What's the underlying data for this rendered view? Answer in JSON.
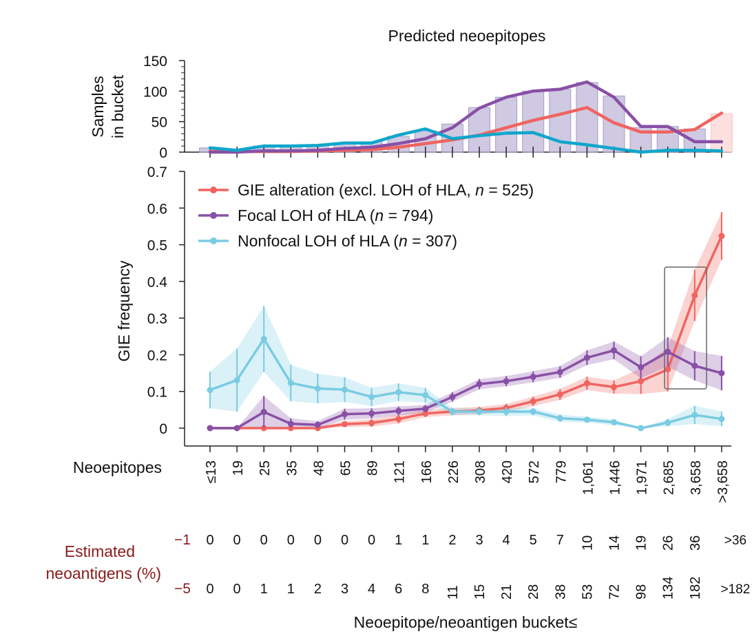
{
  "chart_data": [
    {
      "type": "bar+line",
      "title": "Predicted neoepitopes",
      "ylabel_lines": [
        "Samples",
        "in bucket"
      ],
      "ylim": [
        0,
        150
      ],
      "yticks": [
        "0",
        "50",
        "100",
        "150"
      ],
      "categories": [
        "≤13",
        "19",
        "25",
        "35",
        "48",
        "65",
        "89",
        "121",
        "166",
        "226",
        "308",
        "420",
        "572",
        "779",
        "1,061",
        "1,446",
        "1,971",
        "2,685",
        "3,658",
        ">3,658"
      ],
      "bars_total": [
        7,
        5,
        10,
        10,
        12,
        15,
        17,
        26,
        35,
        46,
        73,
        90,
        100,
        103,
        114,
        92,
        40,
        42,
        38,
        63
      ],
      "series": [
        {
          "color": "#F0645F",
          "values": [
            1,
            1,
            1,
            1,
            2,
            3,
            4,
            8,
            14,
            20,
            28,
            40,
            52,
            62,
            73,
            48,
            33,
            33,
            37,
            64
          ]
        },
        {
          "color": "#8850A6",
          "values": [
            0,
            0,
            2,
            2,
            3,
            6,
            8,
            14,
            22,
            40,
            72,
            90,
            100,
            103,
            115,
            90,
            42,
            42,
            17,
            17
          ]
        },
        {
          "color": "#0FA6CB",
          "values": [
            7,
            3,
            10,
            10,
            11,
            15,
            15,
            28,
            38,
            22,
            27,
            31,
            32,
            17,
            12,
            6,
            0,
            3,
            3,
            2
          ]
        }
      ]
    },
    {
      "type": "line",
      "ylabel": "GIE frequency",
      "ylim": [
        0,
        0.7
      ],
      "yticks": [
        "0",
        "0.1",
        "0.2",
        "0.3",
        "0.4",
        "0.5",
        "0.6",
        "0.7"
      ],
      "legend_position": "top-left",
      "series": [
        {
          "prefix": "GIE alteration (excl. LOH of HLA, ",
          "n_label": "n",
          "suffix": " = 525)",
          "color": "#F0645F",
          "values": [
            0,
            0,
            0,
            0,
            0,
            0.011,
            0.014,
            0.025,
            0.04,
            0.045,
            0.048,
            0.055,
            0.073,
            0.092,
            0.122,
            0.112,
            0.128,
            0.16,
            0.362,
            0.524
          ],
          "ci": [
            0,
            0,
            0,
            0,
            0.004,
            0.008,
            0.01,
            0.012,
            0.01,
            0.01,
            0.01,
            0.011,
            0.013,
            0.015,
            0.018,
            0.018,
            0.035,
            0.06,
            0.07,
            0.065
          ]
        },
        {
          "prefix": "Focal LOH of HLA (",
          "n_label": "n",
          "suffix": " = 794)",
          "color": "#8850A6",
          "values": [
            0,
            0,
            0.044,
            0.012,
            0.009,
            0.038,
            0.04,
            0.047,
            0.053,
            0.085,
            0.12,
            0.128,
            0.14,
            0.153,
            0.192,
            0.212,
            0.166,
            0.208,
            0.17,
            0.15
          ],
          "ci": [
            0,
            0,
            0.044,
            0.015,
            0.01,
            0.015,
            0.014,
            0.012,
            0.01,
            0.013,
            0.014,
            0.014,
            0.015,
            0.016,
            0.02,
            0.024,
            0.03,
            0.04,
            0.04,
            0.047
          ]
        },
        {
          "prefix": "Nonfocal LOH of HLA (",
          "n_label": "n",
          "suffix": " = 307)",
          "color": "#7ACBE3",
          "values": [
            0.104,
            0.131,
            0.243,
            0.123,
            0.108,
            0.105,
            0.085,
            0.098,
            0.09,
            0.045,
            0.045,
            0.045,
            0.045,
            0.027,
            0.023,
            0.016,
            0,
            0.015,
            0.036,
            0.025
          ],
          "ci": [
            0.05,
            0.086,
            0.09,
            0.05,
            0.04,
            0.034,
            0.025,
            0.024,
            0.02,
            0.01,
            0.01,
            0.012,
            0.01,
            0.01,
            0.008,
            0.008,
            0,
            0.01,
            0.025,
            0.02
          ]
        }
      ]
    }
  ],
  "bucket_table": {
    "neoepitopes_label": "Neoepitopes",
    "estimated_label_lines": [
      "Estimated",
      "neoantigens (%)"
    ],
    "row1": {
      "rate": "−1",
      "values": [
        "0",
        "0",
        "0",
        "0",
        "0",
        "0",
        "0",
        "1",
        "1",
        "2",
        "3",
        "4",
        "5",
        "7",
        "10",
        "14",
        "19",
        "26",
        "36",
        ">36"
      ]
    },
    "row2": {
      "rate": "−5",
      "values": [
        "0",
        "0",
        "1",
        "1",
        "2",
        "3",
        "4",
        "6",
        "8",
        "11",
        "15",
        "21",
        "28",
        "38",
        "53",
        "72",
        "98",
        "134",
        "182",
        ">182"
      ]
    }
  },
  "x_axis_title": "Neoepitope/neoantigen bucket≤",
  "colors": {
    "axis": "#222222",
    "red_text": "#8B1A1A",
    "bar_fill": "#A89CC8",
    "bar_fill_last": "#F7C6C4"
  }
}
